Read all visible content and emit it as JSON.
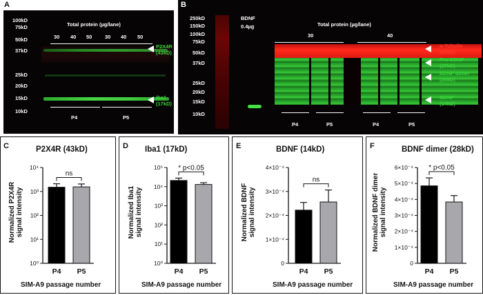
{
  "figure_labels": {
    "a": "A",
    "b": "B",
    "c": "C",
    "d": "D",
    "e": "E",
    "f": "F"
  },
  "blot_a": {
    "ladder": [
      "100kD",
      "75kD",
      "50kD",
      "37kD",
      "25kD",
      "20kD",
      "15kD",
      "10kD"
    ],
    "header": "Total protein (µg/lane)",
    "lanes": [
      "30",
      "40",
      "50",
      "30",
      "40",
      "50"
    ],
    "band_labels": [
      {
        "name": "P2X4R",
        "size": "(43kD)"
      },
      {
        "name": "Iba1",
        "size": "(17kD)"
      }
    ],
    "groups": [
      "P4",
      "P5"
    ]
  },
  "blot_b": {
    "ladder": [
      "250kD",
      "150kD",
      "100kD",
      "75kD",
      "50kD",
      "37kD",
      "25kD",
      "20kD",
      "15kD",
      "10kD"
    ],
    "bdnf_std": [
      "BDNF",
      "0.4µg"
    ],
    "header": "Total protein (µg/lane)",
    "amounts": [
      "30",
      "40"
    ],
    "band_labels": [
      {
        "name": "α-Tubulin",
        "size": "(50kD)",
        "color": "#ff3a2a"
      },
      {
        "name": "Pro-BDNF",
        "size": "(37kD)",
        "color": "#39d43a"
      },
      {
        "name": "BDNF dimer",
        "size": "(28kD)",
        "color": "#39d43a"
      },
      {
        "name": "BDNF",
        "size": "(14kD)",
        "color": "#39d43a"
      }
    ],
    "groups": [
      "P4",
      "P5",
      "P4",
      "P5"
    ]
  },
  "chart_data": [
    {
      "type": "bar",
      "title": "P2X4R (43kD)",
      "ylabel": [
        "Normalized P2X4R",
        "signal intensity"
      ],
      "xlabel": "SIM-A9 passage number",
      "categories": [
        "P4",
        "P5"
      ],
      "values": [
        1500,
        1550
      ],
      "errors": [
        600,
        500
      ],
      "yscale": "log",
      "ylim": [
        1,
        10000
      ],
      "yticks": [
        "10⁰",
        "10¹",
        "10²",
        "10³",
        "10⁴"
      ],
      "annotation": "ns",
      "colors": [
        "#000000",
        "#a8a8ac"
      ]
    },
    {
      "type": "bar",
      "title": "Iba1 (17kD)",
      "ylabel": [
        "Normalized Iba1",
        "signal intensity"
      ],
      "xlabel": "SIM-A9 passage number",
      "categories": [
        "P4",
        "P5"
      ],
      "values": [
        21000,
        13000
      ],
      "errors": [
        7000,
        3000
      ],
      "yscale": "log",
      "ylim": [
        1,
        100000
      ],
      "yticks": [
        "10⁰",
        "10¹",
        "10²",
        "10³",
        "10⁴",
        "10⁵"
      ],
      "annotation": "* p<0.05",
      "colors": [
        "#000000",
        "#a8a8ac"
      ]
    },
    {
      "type": "bar",
      "title": "BDNF (14kD)",
      "ylabel": [
        "Normalized BDNF",
        "signal intensity"
      ],
      "xlabel": "SIM-A9 passage number",
      "categories": [
        "P4",
        "P5"
      ],
      "values": [
        0.000222,
        0.000256
      ],
      "errors": [
        3.2e-05,
        5e-05
      ],
      "yscale": "linear",
      "ylim": [
        0,
        0.0004
      ],
      "yticks": [
        "0",
        "1×10⁻⁴",
        "2×10⁻⁴",
        "3×10⁻⁴",
        "4×10⁻⁴"
      ],
      "annotation": "ns",
      "colors": [
        "#000000",
        "#a8a8ac"
      ]
    },
    {
      "type": "bar",
      "title": "BDNF dimer  (28kD)",
      "ylabel": [
        "Normalized BDNF dimer",
        "signal intensity"
      ],
      "xlabel": "SIM-A9 passage number",
      "categories": [
        "P4",
        "P5"
      ],
      "values": [
        0.000485,
        0.000384
      ],
      "errors": [
        5e-05,
        4e-05
      ],
      "yscale": "linear",
      "ylim": [
        0,
        0.0006
      ],
      "yticks": [
        "0",
        "1×10⁻⁴",
        "2×10⁻⁴",
        "3×10⁻⁴",
        "4×10⁻⁴",
        "5×10⁻⁴",
        "6×10⁻⁴"
      ],
      "annotation": "* p<0.05",
      "colors": [
        "#000000",
        "#a8a8ac"
      ]
    }
  ]
}
